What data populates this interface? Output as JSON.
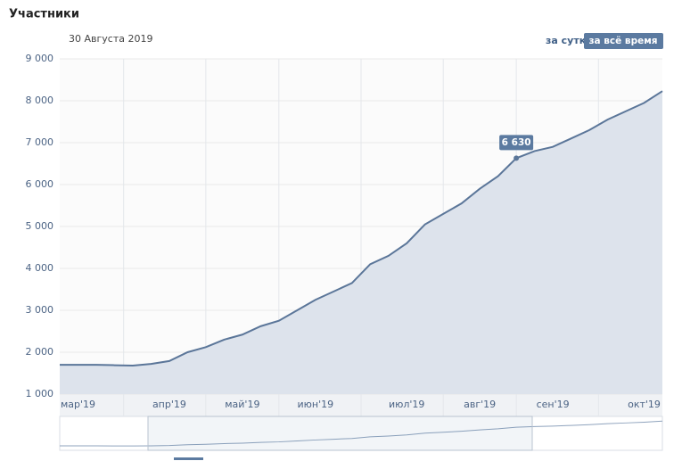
{
  "chart_data": {
    "type": "area",
    "title": "Участники",
    "controls": [
      "за сутки",
      "за всё время"
    ],
    "tooltip": {
      "date": "30 Августа 2019",
      "value": 6630,
      "label": "6 630"
    },
    "categories": [
      null,
      "мар'19",
      null,
      null,
      null,
      null,
      "апр'19",
      null,
      null,
      null,
      "май'19",
      null,
      null,
      null,
      "июн'19",
      null,
      null,
      null,
      null,
      "июл'19",
      null,
      null,
      null,
      "авг'19",
      null,
      null,
      null,
      "сен'19",
      null,
      null,
      null,
      null,
      "окт'19",
      null
    ],
    "values": [
      1700,
      1700,
      1700,
      1690,
      1680,
      1720,
      1790,
      2000,
      2120,
      2300,
      2420,
      2620,
      2750,
      3000,
      3250,
      3450,
      3650,
      4100,
      4300,
      4600,
      5050,
      5300,
      5550,
      5900,
      6200,
      6630,
      6800,
      6900,
      7100,
      7300,
      7550,
      7750,
      7950,
      8230
    ],
    "color": "#5b7699",
    "fill": "#dde3ec",
    "ylim": [
      1000,
      9000
    ],
    "yticks": [
      {
        "value": 1000,
        "label": "1 000"
      },
      {
        "value": 2000,
        "label": "2 000"
      },
      {
        "value": 3000,
        "label": "3 000"
      },
      {
        "value": 4000,
        "label": "4 000"
      },
      {
        "value": 5000,
        "label": "5 000"
      },
      {
        "value": 6000,
        "label": "6 000"
      },
      {
        "value": 7000,
        "label": "7 000"
      },
      {
        "value": 8000,
        "label": "8 000"
      },
      {
        "value": 9000,
        "label": "9 000"
      }
    ],
    "grid": true
  }
}
